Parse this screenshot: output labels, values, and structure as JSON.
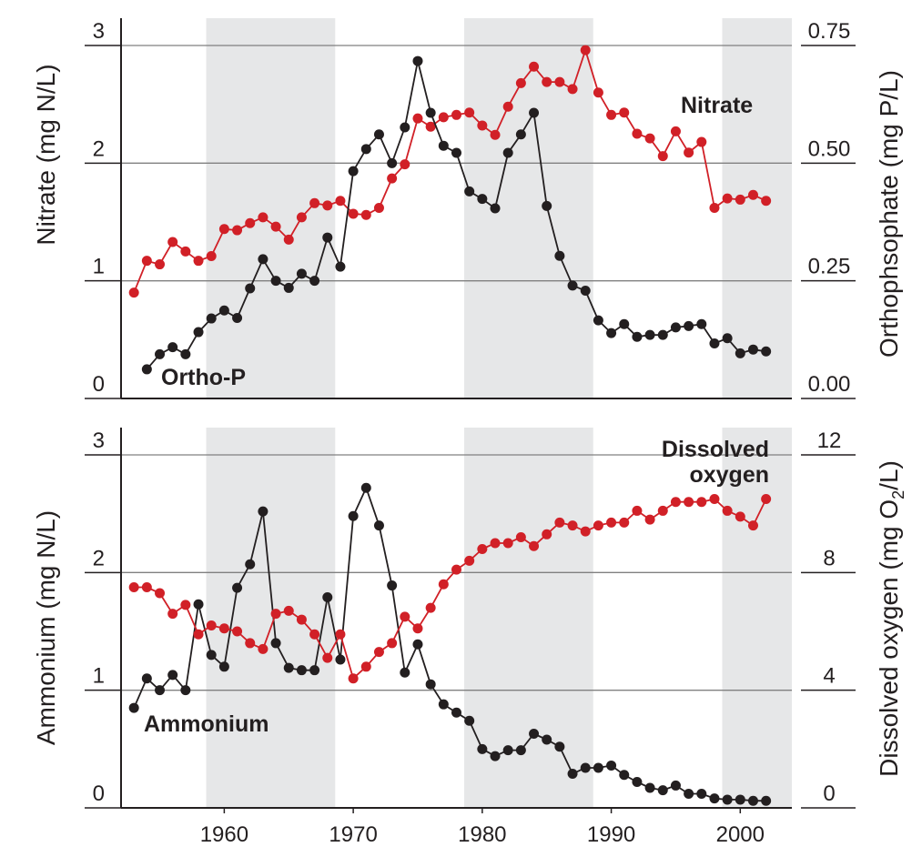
{
  "colors": {
    "black_series": "#231f20",
    "red_series": "#d12027",
    "band": "#e6e7e8",
    "gridline": "#808080",
    "axis": "#231f20"
  },
  "chart_data": [
    {
      "type": "line",
      "panel": "top",
      "x_range": [
        1952,
        2004
      ],
      "shaded_periods": [
        [
          1958.6,
          1968.6
        ],
        [
          1978.6,
          1988.6
        ],
        [
          1998.6,
          2004
        ]
      ],
      "left_axis": {
        "label": "Nitrate (mg N/L)",
        "ticks": [
          0,
          1,
          2,
          3
        ],
        "tick_labels": [
          "0",
          "1",
          "2",
          "3"
        ],
        "range": [
          0,
          3
        ]
      },
      "right_axis": {
        "label": "Orthophsophate (mg P/L)",
        "ticks": [
          0,
          0.25,
          0.5,
          0.75
        ],
        "tick_labels": [
          "0.00",
          "0.25",
          "0.50",
          "0.75"
        ],
        "range": [
          0,
          0.75
        ]
      },
      "grid": true,
      "series": [
        {
          "name": "Nitrate",
          "axis": "left",
          "color": "red",
          "x": [
            1953,
            1954,
            1955,
            1956,
            1957,
            1958,
            1959,
            1960,
            1961,
            1962,
            1963,
            1964,
            1965,
            1966,
            1967,
            1968,
            1969,
            1970,
            1971,
            1972,
            1973,
            1974,
            1975,
            1976,
            1977,
            1978,
            1979,
            1980,
            1981,
            1982,
            1983,
            1984,
            1985,
            1986,
            1987,
            1988,
            1989,
            1990,
            1991,
            1992,
            1993,
            1994,
            1995,
            1996,
            1997,
            1998,
            1999,
            2000,
            2001,
            2002
          ],
          "y": [
            0.9,
            1.17,
            1.14,
            1.33,
            1.25,
            1.17,
            1.21,
            1.44,
            1.43,
            1.49,
            1.54,
            1.46,
            1.35,
            1.54,
            1.66,
            1.64,
            1.68,
            1.57,
            1.56,
            1.62,
            1.87,
            1.99,
            2.38,
            2.31,
            2.39,
            2.41,
            2.43,
            2.32,
            2.24,
            2.48,
            2.68,
            2.82,
            2.69,
            2.69,
            2.63,
            2.96,
            2.6,
            2.41,
            2.43,
            2.25,
            2.21,
            2.06,
            2.27,
            2.09,
            2.18,
            1.62,
            1.7,
            1.69,
            1.73,
            1.68
          ]
        },
        {
          "name": "Ortho-P",
          "axis": "right",
          "color": "black",
          "x": [
            1954,
            1955,
            1956,
            1957,
            1958,
            1959,
            1960,
            1961,
            1962,
            1963,
            1964,
            1965,
            1966,
            1967,
            1968,
            1969,
            1970,
            1971,
            1972,
            1973,
            1974,
            1975,
            1976,
            1977,
            1978,
            1979,
            1980,
            1981,
            1982,
            1983,
            1984,
            1985,
            1986,
            1987,
            1988,
            1989,
            1990,
            1991,
            1992,
            1993,
            1994,
            1995,
            1996,
            1997,
            1998,
            1999,
            2000,
            2001,
            2002
          ],
          "y": [
            0.062,
            0.094,
            0.109,
            0.094,
            0.141,
            0.17,
            0.187,
            0.171,
            0.234,
            0.296,
            0.25,
            0.235,
            0.265,
            0.25,
            0.342,
            0.28,
            0.483,
            0.53,
            0.561,
            0.5,
            0.576,
            0.717,
            0.607,
            0.537,
            0.522,
            0.44,
            0.424,
            0.404,
            0.522,
            0.561,
            0.607,
            0.409,
            0.303,
            0.24,
            0.229,
            0.166,
            0.139,
            0.158,
            0.131,
            0.135,
            0.135,
            0.151,
            0.154,
            0.158,
            0.117,
            0.128,
            0.096,
            0.104,
            0.1
          ]
        }
      ]
    },
    {
      "type": "line",
      "panel": "bottom",
      "x_range": [
        1952,
        2004
      ],
      "shaded_periods": [
        [
          1958.6,
          1968.6
        ],
        [
          1978.6,
          1988.6
        ],
        [
          1998.6,
          2004
        ]
      ],
      "x_ticks": [
        1960,
        1970,
        1980,
        1990,
        2000
      ],
      "x_tick_labels": [
        "1960",
        "1970",
        "1980",
        "1990",
        "2000"
      ],
      "left_axis": {
        "label": "Ammonium (mg N/L)",
        "ticks": [
          0,
          1,
          2,
          3
        ],
        "tick_labels": [
          "0",
          "1",
          "2",
          "3"
        ],
        "range": [
          0,
          3
        ]
      },
      "right_axis": {
        "label_prefix": "Dissolved oxygen (mg O",
        "label_sub": "2",
        "label_suffix": "/L)",
        "ticks": [
          0,
          4,
          8,
          12
        ],
        "tick_labels": [
          "0",
          "4",
          "8",
          "12"
        ],
        "range": [
          0,
          12
        ]
      },
      "grid": true,
      "series": [
        {
          "name": "Ammonium",
          "axis": "left",
          "color": "black",
          "x": [
            1953,
            1954,
            1955,
            1956,
            1957,
            1958,
            1959,
            1960,
            1961,
            1962,
            1963,
            1964,
            1965,
            1966,
            1967,
            1968,
            1969,
            1970,
            1971,
            1972,
            1973,
            1974,
            1975,
            1976,
            1977,
            1978,
            1979,
            1980,
            1981,
            1982,
            1983,
            1984,
            1985,
            1986,
            1987,
            1988,
            1989,
            1990,
            1991,
            1992,
            1993,
            1994,
            1995,
            1996,
            1997,
            1998,
            1999,
            2000,
            2001,
            2002
          ],
          "y": [
            0.85,
            1.1,
            1.0,
            1.13,
            1.0,
            1.73,
            1.3,
            1.2,
            1.87,
            2.07,
            2.52,
            1.4,
            1.19,
            1.17,
            1.17,
            1.79,
            1.26,
            2.48,
            2.72,
            2.4,
            1.89,
            1.15,
            1.39,
            1.05,
            0.88,
            0.81,
            0.74,
            0.5,
            0.44,
            0.49,
            0.49,
            0.63,
            0.58,
            0.52,
            0.29,
            0.34,
            0.34,
            0.36,
            0.28,
            0.22,
            0.17,
            0.15,
            0.19,
            0.12,
            0.12,
            0.08,
            0.07,
            0.07,
            0.06,
            0.06
          ]
        },
        {
          "name": "Dissolved oxygen",
          "axis": "right",
          "color": "red",
          "x": [
            1953,
            1954,
            1955,
            1956,
            1957,
            1958,
            1959,
            1960,
            1961,
            1962,
            1963,
            1964,
            1965,
            1966,
            1967,
            1968,
            1969,
            1970,
            1971,
            1972,
            1973,
            1974,
            1975,
            1976,
            1977,
            1978,
            1979,
            1980,
            1981,
            1982,
            1983,
            1984,
            1985,
            1986,
            1987,
            1988,
            1989,
            1990,
            1991,
            1992,
            1993,
            1994,
            1995,
            1996,
            1997,
            1998,
            1999,
            2000,
            2001,
            2002
          ],
          "y": [
            7.5,
            7.5,
            7.3,
            6.6,
            6.9,
            5.9,
            6.2,
            6.1,
            6.0,
            5.6,
            5.4,
            6.6,
            6.7,
            6.4,
            5.9,
            5.1,
            5.9,
            4.4,
            4.8,
            5.3,
            5.6,
            6.5,
            6.1,
            6.8,
            7.6,
            8.1,
            8.4,
            8.8,
            9.0,
            9.0,
            9.2,
            8.9,
            9.3,
            9.7,
            9.6,
            9.4,
            9.6,
            9.7,
            9.7,
            10.1,
            9.8,
            10.1,
            10.4,
            10.4,
            10.4,
            10.5,
            10.1,
            9.9,
            9.6,
            10.5
          ]
        }
      ],
      "series_labels": [
        "Ammonium",
        "Dissolved",
        "oxygen"
      ]
    }
  ]
}
